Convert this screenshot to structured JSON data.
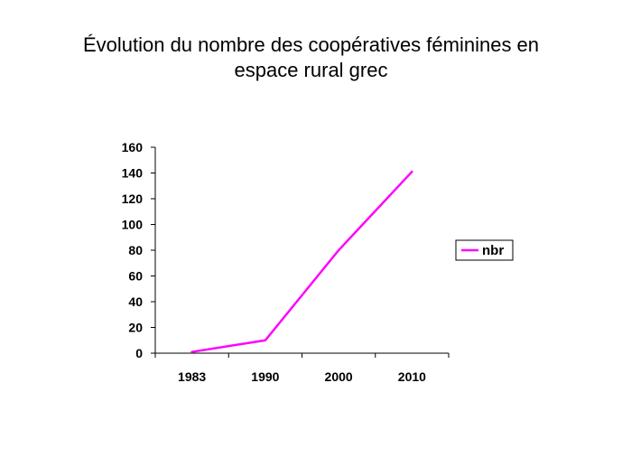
{
  "chart_data": {
    "type": "line",
    "title_line1": "Évolution du nombre des coopératives féminines en",
    "title_line2": "espace rural grec",
    "categories": [
      "1983",
      "1990",
      "2000",
      "2010"
    ],
    "series": [
      {
        "name": "nbr",
        "values": [
          1,
          10,
          80,
          141
        ],
        "color": "#ff00ff"
      }
    ],
    "xlabel": "",
    "ylabel": "",
    "ylim": [
      0,
      160
    ],
    "yticks": [
      0,
      20,
      40,
      60,
      80,
      100,
      120,
      140,
      160
    ],
    "grid": false,
    "legend": "right"
  }
}
